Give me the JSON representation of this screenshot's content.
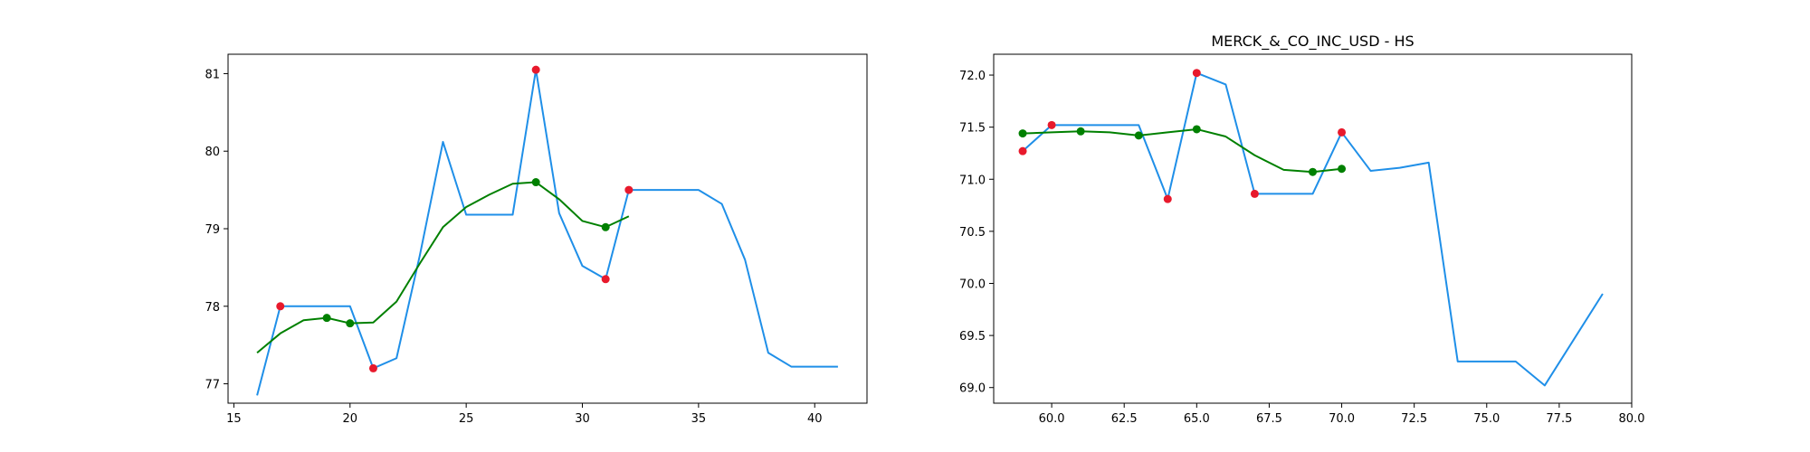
{
  "chart_data": [
    {
      "type": "line",
      "title": "",
      "xlabel": "",
      "ylabel": "",
      "xlim": [
        14.75,
        42.25
      ],
      "ylim": [
        76.75,
        81.25
      ],
      "xticks": [
        15,
        20,
        25,
        30,
        35,
        40
      ],
      "yticks": [
        77,
        78,
        79,
        80,
        81
      ],
      "grid": false,
      "series": [
        {
          "role": "price",
          "color": "#1f8fe8",
          "x": [
            16,
            17,
            18,
            19,
            20,
            21,
            22,
            23,
            24,
            25,
            26,
            27,
            28,
            29,
            30,
            31,
            32,
            33,
            34,
            35,
            36,
            37,
            38,
            39,
            40,
            41
          ],
          "y": [
            76.85,
            78.0,
            78.0,
            78.0,
            78.0,
            77.2,
            77.33,
            78.65,
            80.12,
            79.18,
            79.18,
            79.18,
            81.05,
            79.2,
            78.52,
            78.35,
            79.5,
            79.5,
            79.5,
            79.5,
            79.32,
            78.6,
            77.4,
            77.22,
            77.22,
            77.22
          ]
        },
        {
          "role": "moving-average",
          "color": "#008000",
          "x": [
            16,
            17,
            18,
            19,
            20,
            21,
            22,
            23,
            24,
            25,
            26,
            27,
            28,
            29,
            30,
            31,
            32
          ],
          "y": [
            77.4,
            77.65,
            77.82,
            77.85,
            77.78,
            77.79,
            78.06,
            78.55,
            79.02,
            79.28,
            79.44,
            79.58,
            79.6,
            79.38,
            79.1,
            79.02,
            79.16
          ]
        }
      ],
      "points": [
        {
          "role": "price-point",
          "color": "#e8192c",
          "x": [
            17,
            21,
            28,
            31,
            32
          ],
          "y": [
            78.0,
            77.2,
            81.05,
            78.35,
            79.5
          ]
        },
        {
          "role": "average-point",
          "color": "#008000",
          "x": [
            19,
            20,
            28,
            31
          ],
          "y": [
            77.85,
            77.78,
            79.6,
            79.02
          ]
        }
      ]
    },
    {
      "type": "line",
      "title": "MERCK_&_CO_INC_USD - HS",
      "xlabel": "",
      "ylabel": "",
      "xlim": [
        58,
        80
      ],
      "ylim": [
        68.85,
        72.2
      ],
      "xticks": [
        60.0,
        62.5,
        65.0,
        67.5,
        70.0,
        72.5,
        75.0,
        77.5,
        80.0
      ],
      "xtick_labels": [
        "60.0",
        "62.5",
        "65.0",
        "67.5",
        "70.0",
        "72.5",
        "75.0",
        "77.5",
        "80.0"
      ],
      "yticks": [
        69.0,
        69.5,
        70.0,
        70.5,
        71.0,
        71.5,
        72.0
      ],
      "ytick_labels": [
        "69.0",
        "69.5",
        "70.0",
        "70.5",
        "71.0",
        "71.5",
        "72.0"
      ],
      "grid": false,
      "series": [
        {
          "role": "price",
          "color": "#1f8fe8",
          "x": [
            59,
            60,
            61,
            62,
            63,
            64,
            65,
            66,
            67,
            68,
            69,
            70,
            71,
            72,
            73,
            74,
            75,
            76,
            77,
            78,
            79
          ],
          "y": [
            71.27,
            71.52,
            71.52,
            71.52,
            71.52,
            70.81,
            72.02,
            71.91,
            70.86,
            70.86,
            70.86,
            71.45,
            71.08,
            71.11,
            71.16,
            69.25,
            69.25,
            69.25,
            69.02,
            69.46,
            69.9
          ]
        },
        {
          "role": "moving-average",
          "color": "#008000",
          "x": [
            59,
            60,
            61,
            62,
            63,
            64,
            65,
            66,
            67,
            68,
            69,
            70
          ],
          "y": [
            71.44,
            71.45,
            71.46,
            71.45,
            71.42,
            71.45,
            71.48,
            71.41,
            71.23,
            71.09,
            71.07,
            71.1
          ]
        }
      ],
      "points": [
        {
          "role": "price-point",
          "color": "#e8192c",
          "x": [
            59,
            60,
            64,
            65,
            67,
            70
          ],
          "y": [
            71.27,
            71.52,
            70.81,
            72.02,
            70.86,
            71.45
          ]
        },
        {
          "role": "average-point",
          "color": "#008000",
          "x": [
            59,
            61,
            63,
            65,
            69,
            70
          ],
          "y": [
            71.44,
            71.46,
            71.42,
            71.48,
            71.07,
            71.1
          ]
        }
      ]
    }
  ]
}
